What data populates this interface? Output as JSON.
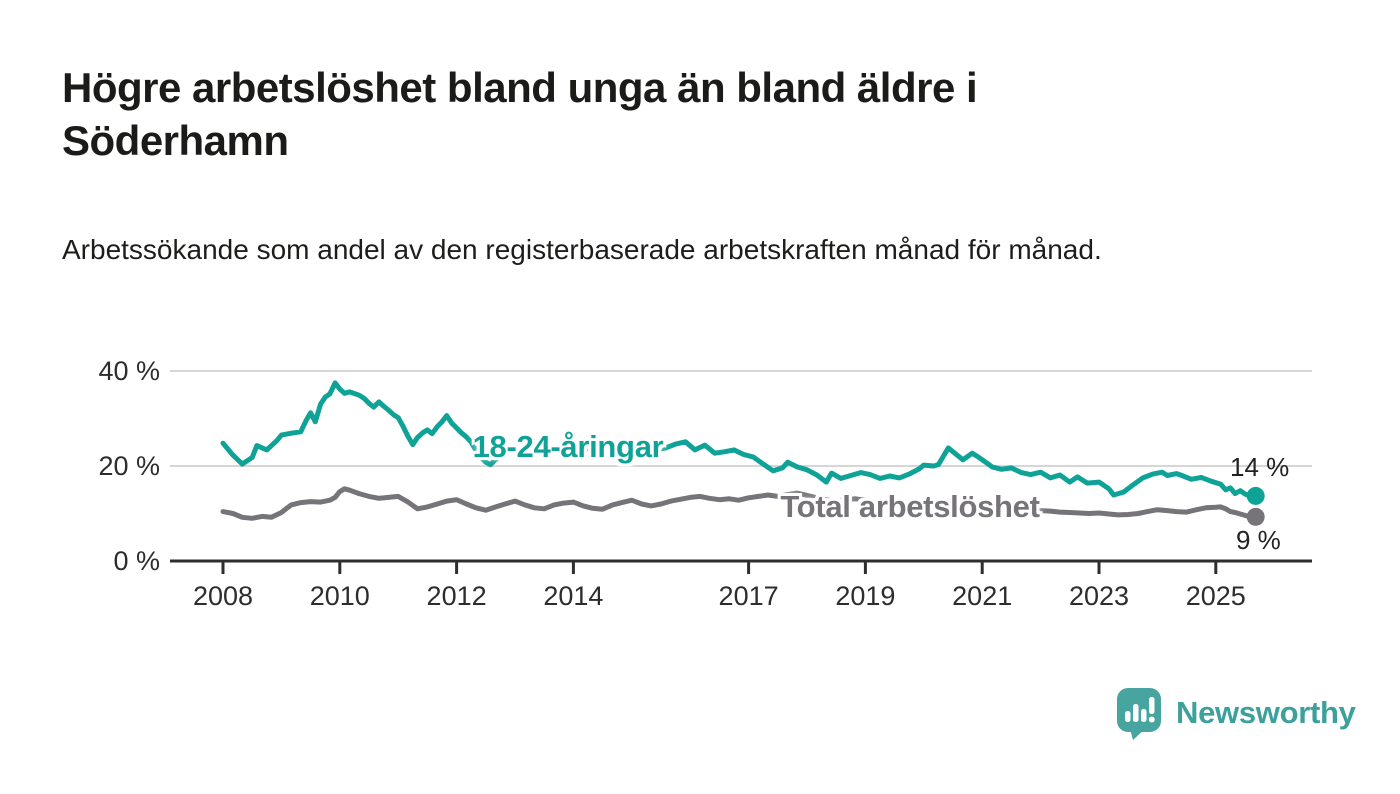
{
  "header": {
    "title": "Högre arbetslöshet bland unga än bland äldre i Söderhamn",
    "subtitle": "Arbetssökande som andel av den registerbaserade arbetskraften månad för månad."
  },
  "chart_data": {
    "type": "line",
    "unit": "%",
    "grid": "horizontal-only",
    "x_axis": {
      "range": [
        2007.2,
        2026.6
      ],
      "ticks": [
        2008,
        2010,
        2012,
        2014,
        2017,
        2019,
        2021,
        2023,
        2025
      ]
    },
    "y_axis": {
      "range": [
        0,
        42
      ],
      "ticks": [
        0,
        20,
        40
      ],
      "tick_labels": [
        "0 %",
        "20 %",
        "40 %"
      ]
    },
    "colors": {
      "young": "#0fa296",
      "total": "#767379",
      "gridline": "#d6d6d6",
      "axis": "#2e2e2e",
      "tick_text": "#2d2d2d"
    },
    "series": [
      {
        "name": "total",
        "label": "Total arbetslöshet",
        "color": "#767379",
        "end_label": "9 %",
        "end_value": 9,
        "points": [
          [
            2008.0,
            10.4
          ],
          [
            2008.17,
            10.0
          ],
          [
            2008.33,
            9.2
          ],
          [
            2008.5,
            9.0
          ],
          [
            2008.67,
            9.4
          ],
          [
            2008.83,
            9.2
          ],
          [
            2009.0,
            10.2
          ],
          [
            2009.08,
            11.0
          ],
          [
            2009.17,
            11.8
          ],
          [
            2009.33,
            12.3
          ],
          [
            2009.5,
            12.5
          ],
          [
            2009.67,
            12.4
          ],
          [
            2009.83,
            12.8
          ],
          [
            2009.92,
            13.4
          ],
          [
            2010.0,
            14.6
          ],
          [
            2010.08,
            15.2
          ],
          [
            2010.17,
            14.9
          ],
          [
            2010.33,
            14.2
          ],
          [
            2010.5,
            13.6
          ],
          [
            2010.67,
            13.2
          ],
          [
            2010.83,
            13.4
          ],
          [
            2011.0,
            13.6
          ],
          [
            2011.17,
            12.4
          ],
          [
            2011.33,
            11.0
          ],
          [
            2011.5,
            11.4
          ],
          [
            2011.67,
            12.0
          ],
          [
            2011.83,
            12.6
          ],
          [
            2012.0,
            12.9
          ],
          [
            2012.17,
            12.0
          ],
          [
            2012.33,
            11.2
          ],
          [
            2012.5,
            10.7
          ],
          [
            2012.67,
            11.4
          ],
          [
            2012.83,
            12.0
          ],
          [
            2013.0,
            12.6
          ],
          [
            2013.17,
            11.8
          ],
          [
            2013.33,
            11.2
          ],
          [
            2013.5,
            11.0
          ],
          [
            2013.67,
            11.8
          ],
          [
            2013.83,
            12.2
          ],
          [
            2014.0,
            12.4
          ],
          [
            2014.17,
            11.6
          ],
          [
            2014.33,
            11.1
          ],
          [
            2014.5,
            10.9
          ],
          [
            2014.67,
            11.8
          ],
          [
            2014.83,
            12.3
          ],
          [
            2015.0,
            12.8
          ],
          [
            2015.17,
            12.0
          ],
          [
            2015.33,
            11.6
          ],
          [
            2015.5,
            12.0
          ],
          [
            2015.67,
            12.6
          ],
          [
            2015.83,
            13.0
          ],
          [
            2016.0,
            13.4
          ],
          [
            2016.17,
            13.6
          ],
          [
            2016.33,
            13.2
          ],
          [
            2016.5,
            12.9
          ],
          [
            2016.67,
            13.1
          ],
          [
            2016.83,
            12.8
          ],
          [
            2017.0,
            13.3
          ],
          [
            2017.17,
            13.6
          ],
          [
            2017.33,
            13.9
          ],
          [
            2017.5,
            13.6
          ],
          [
            2017.67,
            14.0
          ],
          [
            2017.83,
            14.3
          ],
          [
            2018.0,
            13.8
          ],
          [
            2018.17,
            13.3
          ],
          [
            2018.33,
            12.9
          ],
          [
            2018.5,
            12.6
          ],
          [
            2018.67,
            12.9
          ],
          [
            2018.83,
            13.1
          ],
          [
            2019.0,
            12.8
          ],
          [
            2019.17,
            12.3
          ],
          [
            2019.33,
            12.0
          ],
          [
            2019.5,
            11.8
          ],
          [
            2019.67,
            12.0
          ],
          [
            2019.83,
            12.2
          ],
          [
            2020.0,
            12.0
          ],
          [
            2020.17,
            12.4
          ],
          [
            2020.33,
            12.8
          ],
          [
            2020.5,
            12.5
          ],
          [
            2020.67,
            12.2
          ],
          [
            2020.83,
            12.0
          ],
          [
            2021.0,
            11.8
          ],
          [
            2021.17,
            11.4
          ],
          [
            2021.33,
            11.1
          ],
          [
            2021.5,
            10.9
          ],
          [
            2021.67,
            10.7
          ],
          [
            2021.83,
            10.5
          ],
          [
            2022.0,
            10.6
          ],
          [
            2022.17,
            10.5
          ],
          [
            2022.33,
            10.3
          ],
          [
            2022.5,
            10.2
          ],
          [
            2022.67,
            10.1
          ],
          [
            2022.83,
            10.0
          ],
          [
            2023.0,
            10.1
          ],
          [
            2023.17,
            9.9
          ],
          [
            2023.33,
            9.7
          ],
          [
            2023.5,
            9.8
          ],
          [
            2023.67,
            10.0
          ],
          [
            2023.83,
            10.4
          ],
          [
            2024.0,
            10.8
          ],
          [
            2024.17,
            10.6
          ],
          [
            2024.33,
            10.4
          ],
          [
            2024.5,
            10.3
          ],
          [
            2024.67,
            10.8
          ],
          [
            2024.83,
            11.2
          ],
          [
            2025.0,
            11.3
          ],
          [
            2025.08,
            11.4
          ],
          [
            2025.17,
            11.0
          ],
          [
            2025.25,
            10.4
          ],
          [
            2025.33,
            10.2
          ],
          [
            2025.42,
            9.9
          ],
          [
            2025.5,
            9.6
          ],
          [
            2025.58,
            9.3
          ]
        ]
      },
      {
        "name": "young",
        "label": "18-24-åringar",
        "color": "#0fa296",
        "end_label": "14 %",
        "end_value": 14,
        "points": [
          [
            2008.0,
            24.8
          ],
          [
            2008.17,
            22.3
          ],
          [
            2008.33,
            20.4
          ],
          [
            2008.5,
            21.8
          ],
          [
            2008.58,
            24.3
          ],
          [
            2008.75,
            23.4
          ],
          [
            2008.92,
            25.3
          ],
          [
            2009.0,
            26.5
          ],
          [
            2009.17,
            26.9
          ],
          [
            2009.33,
            27.2
          ],
          [
            2009.42,
            29.5
          ],
          [
            2009.5,
            31.2
          ],
          [
            2009.58,
            29.3
          ],
          [
            2009.67,
            33.0
          ],
          [
            2009.75,
            34.5
          ],
          [
            2009.83,
            35.2
          ],
          [
            2009.92,
            37.5
          ],
          [
            2010.0,
            36.2
          ],
          [
            2010.08,
            35.3
          ],
          [
            2010.17,
            35.6
          ],
          [
            2010.33,
            34.9
          ],
          [
            2010.42,
            34.2
          ],
          [
            2010.5,
            33.2
          ],
          [
            2010.58,
            32.4
          ],
          [
            2010.67,
            33.5
          ],
          [
            2010.75,
            32.6
          ],
          [
            2010.83,
            31.8
          ],
          [
            2010.92,
            30.8
          ],
          [
            2011.0,
            30.2
          ],
          [
            2011.08,
            28.4
          ],
          [
            2011.17,
            26.2
          ],
          [
            2011.25,
            24.5
          ],
          [
            2011.33,
            26.0
          ],
          [
            2011.42,
            27.0
          ],
          [
            2011.5,
            27.6
          ],
          [
            2011.58,
            26.8
          ],
          [
            2011.67,
            28.3
          ],
          [
            2011.75,
            29.3
          ],
          [
            2011.83,
            30.6
          ],
          [
            2011.92,
            29.0
          ],
          [
            2012.0,
            28.0
          ],
          [
            2012.08,
            27.0
          ],
          [
            2012.17,
            26.1
          ],
          [
            2012.25,
            25.0
          ],
          [
            2012.33,
            23.3
          ],
          [
            2012.42,
            21.8
          ],
          [
            2012.5,
            20.8
          ],
          [
            2012.58,
            20.3
          ],
          [
            2012.67,
            21.4
          ],
          [
            2012.83,
            22.6
          ],
          [
            2013.0,
            23.8
          ],
          [
            2013.17,
            23.0
          ],
          [
            2013.33,
            23.8
          ],
          [
            2013.5,
            23.2
          ],
          [
            2013.67,
            24.0
          ],
          [
            2013.83,
            23.2
          ],
          [
            2014.0,
            24.2
          ],
          [
            2014.17,
            23.4
          ],
          [
            2014.33,
            24.0
          ],
          [
            2014.5,
            23.0
          ],
          [
            2014.67,
            23.6
          ],
          [
            2014.83,
            22.8
          ],
          [
            2015.0,
            23.6
          ],
          [
            2015.17,
            22.8
          ],
          [
            2015.33,
            23.4
          ],
          [
            2015.5,
            23.6
          ],
          [
            2015.58,
            23.8
          ],
          [
            2015.75,
            24.6
          ],
          [
            2015.92,
            25.1
          ],
          [
            2016.08,
            23.4
          ],
          [
            2016.25,
            24.4
          ],
          [
            2016.42,
            22.7
          ],
          [
            2016.58,
            23.0
          ],
          [
            2016.75,
            23.4
          ],
          [
            2016.92,
            22.4
          ],
          [
            2017.08,
            21.9
          ],
          [
            2017.25,
            20.4
          ],
          [
            2017.42,
            19.0
          ],
          [
            2017.58,
            19.6
          ],
          [
            2017.67,
            20.8
          ],
          [
            2017.83,
            19.8
          ],
          [
            2018.0,
            19.2
          ],
          [
            2018.17,
            18.1
          ],
          [
            2018.33,
            16.6
          ],
          [
            2018.42,
            18.5
          ],
          [
            2018.58,
            17.4
          ],
          [
            2018.75,
            18.0
          ],
          [
            2018.92,
            18.6
          ],
          [
            2019.08,
            18.2
          ],
          [
            2019.25,
            17.4
          ],
          [
            2019.42,
            17.9
          ],
          [
            2019.58,
            17.5
          ],
          [
            2019.75,
            18.3
          ],
          [
            2019.92,
            19.4
          ],
          [
            2020.0,
            20.2
          ],
          [
            2020.17,
            20.0
          ],
          [
            2020.25,
            20.3
          ],
          [
            2020.42,
            23.8
          ],
          [
            2020.58,
            22.2
          ],
          [
            2020.67,
            21.3
          ],
          [
            2020.83,
            22.7
          ],
          [
            2020.92,
            22.0
          ],
          [
            2021.08,
            20.6
          ],
          [
            2021.17,
            19.8
          ],
          [
            2021.33,
            19.3
          ],
          [
            2021.5,
            19.6
          ],
          [
            2021.67,
            18.6
          ],
          [
            2021.83,
            18.2
          ],
          [
            2022.0,
            18.7
          ],
          [
            2022.17,
            17.5
          ],
          [
            2022.33,
            18.1
          ],
          [
            2022.5,
            16.6
          ],
          [
            2022.63,
            17.7
          ],
          [
            2022.8,
            16.4
          ],
          [
            2023.0,
            16.6
          ],
          [
            2023.17,
            15.2
          ],
          [
            2023.25,
            13.9
          ],
          [
            2023.42,
            14.5
          ],
          [
            2023.58,
            16.0
          ],
          [
            2023.75,
            17.5
          ],
          [
            2023.92,
            18.3
          ],
          [
            2024.08,
            18.7
          ],
          [
            2024.17,
            18.0
          ],
          [
            2024.33,
            18.4
          ],
          [
            2024.42,
            18.0
          ],
          [
            2024.58,
            17.2
          ],
          [
            2024.75,
            17.6
          ],
          [
            2024.92,
            16.8
          ],
          [
            2025.08,
            16.2
          ],
          [
            2025.17,
            15.0
          ],
          [
            2025.25,
            15.4
          ],
          [
            2025.33,
            14.2
          ],
          [
            2025.42,
            14.8
          ],
          [
            2025.5,
            14.1
          ],
          [
            2025.58,
            13.7
          ]
        ]
      }
    ]
  },
  "footer": {
    "brand": "Newsworthy",
    "brand_color": "#3da19b",
    "logo_bubble_color": "#47a49f"
  }
}
